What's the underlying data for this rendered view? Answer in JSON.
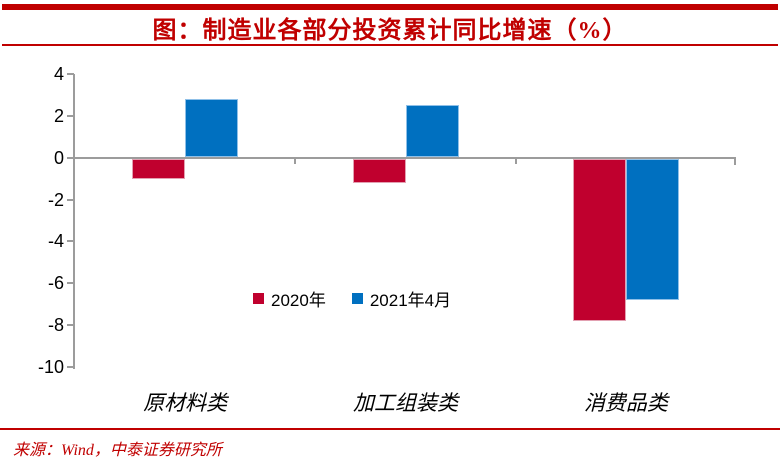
{
  "title": "图：制造业各部分投资累计同比增速（%）",
  "source_note": "来源：Wind，中泰证券研究所",
  "colors": {
    "accent_red": "#C00000",
    "bar_2020_red": "#C0002E",
    "bar_2021_blue": "#0070C0",
    "axis_gray": "#9C9C9C"
  },
  "legend": {
    "items": [
      {
        "label": "2020年",
        "color": "#C0002E"
      },
      {
        "label": "2021年4月",
        "color": "#0070C0"
      }
    ]
  },
  "chart_data": {
    "type": "bar",
    "title": "图：制造业各部分投资累计同比增速（%）",
    "categories": [
      "原材料类",
      "加工组装类",
      "消费品类"
    ],
    "series": [
      {
        "name": "2020年",
        "color": "#C0002E",
        "values": [
          -1.0,
          -1.2,
          -7.8
        ]
      },
      {
        "name": "2021年4月",
        "color": "#0070C0",
        "values": [
          2.8,
          2.5,
          -6.8
        ]
      }
    ],
    "xlabel": "",
    "ylabel": "",
    "ylim": [
      -10,
      4
    ],
    "yticks": [
      4,
      2,
      0,
      -2,
      -4,
      -6,
      -8,
      -10
    ],
    "grid": false,
    "legend_position": "inside-bottom-center"
  }
}
